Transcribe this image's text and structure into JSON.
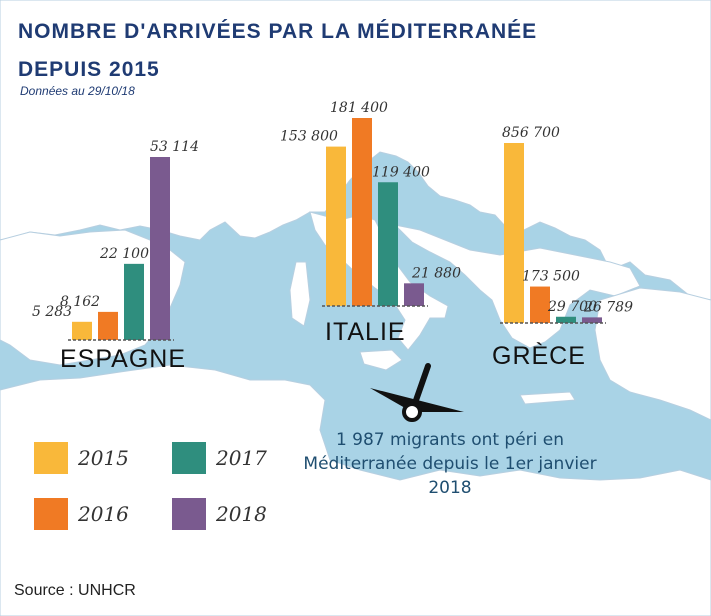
{
  "title_line1": "NOMBRE D'ARRIVÉES PAR LA MÉDITERRANÉE",
  "title_line2": "DEPUIS 2015",
  "subtitle": "Données au 29/10/18",
  "note": "1 987 migrants ont péri en Méditerranée depuis le 1er janvier 2018",
  "source": "Source : UNHCR",
  "colors": {
    "2015": "#f9b83a",
    "2016": "#f07a24",
    "2017": "#2f8e7e",
    "2018": "#7a5a8f",
    "sea": "#a9d3e6",
    "land": "#ffffff",
    "title": "#1f3b73"
  },
  "icons": [
    "boat-icon"
  ],
  "chart_data": {
    "type": "bar",
    "title": "NOMBRE D'ARRIVÉES PAR LA MÉDITERRANÉE DEPUIS 2015",
    "categories": [
      "ESPAGNE",
      "ITALIE",
      "GRÈCE"
    ],
    "series_names": [
      "2015",
      "2016",
      "2017",
      "2018"
    ],
    "groups": [
      {
        "name": "ESPAGNE",
        "values": [
          5283,
          8162,
          22100,
          53114
        ],
        "labels": [
          "5 283",
          "8 162",
          "22 100",
          "53 114"
        ]
      },
      {
        "name": "ITALIE",
        "values": [
          153800,
          181400,
          119400,
          21880
        ],
        "labels": [
          "153 800",
          "181 400",
          "119 400",
          "21 880"
        ]
      },
      {
        "name": "GRÈCE",
        "values": [
          856700,
          173500,
          29700,
          26789
        ],
        "labels": [
          "856 700",
          "173 500",
          "29 700",
          "26 789"
        ]
      }
    ],
    "legend": [
      {
        "label": "2015",
        "color": "#f9b83a"
      },
      {
        "label": "2016",
        "color": "#f07a24"
      },
      {
        "label": "2017",
        "color": "#2f8e7e"
      },
      {
        "label": "2018",
        "color": "#7a5a8f"
      }
    ],
    "legend_position": "bottom-left",
    "grid": false
  }
}
